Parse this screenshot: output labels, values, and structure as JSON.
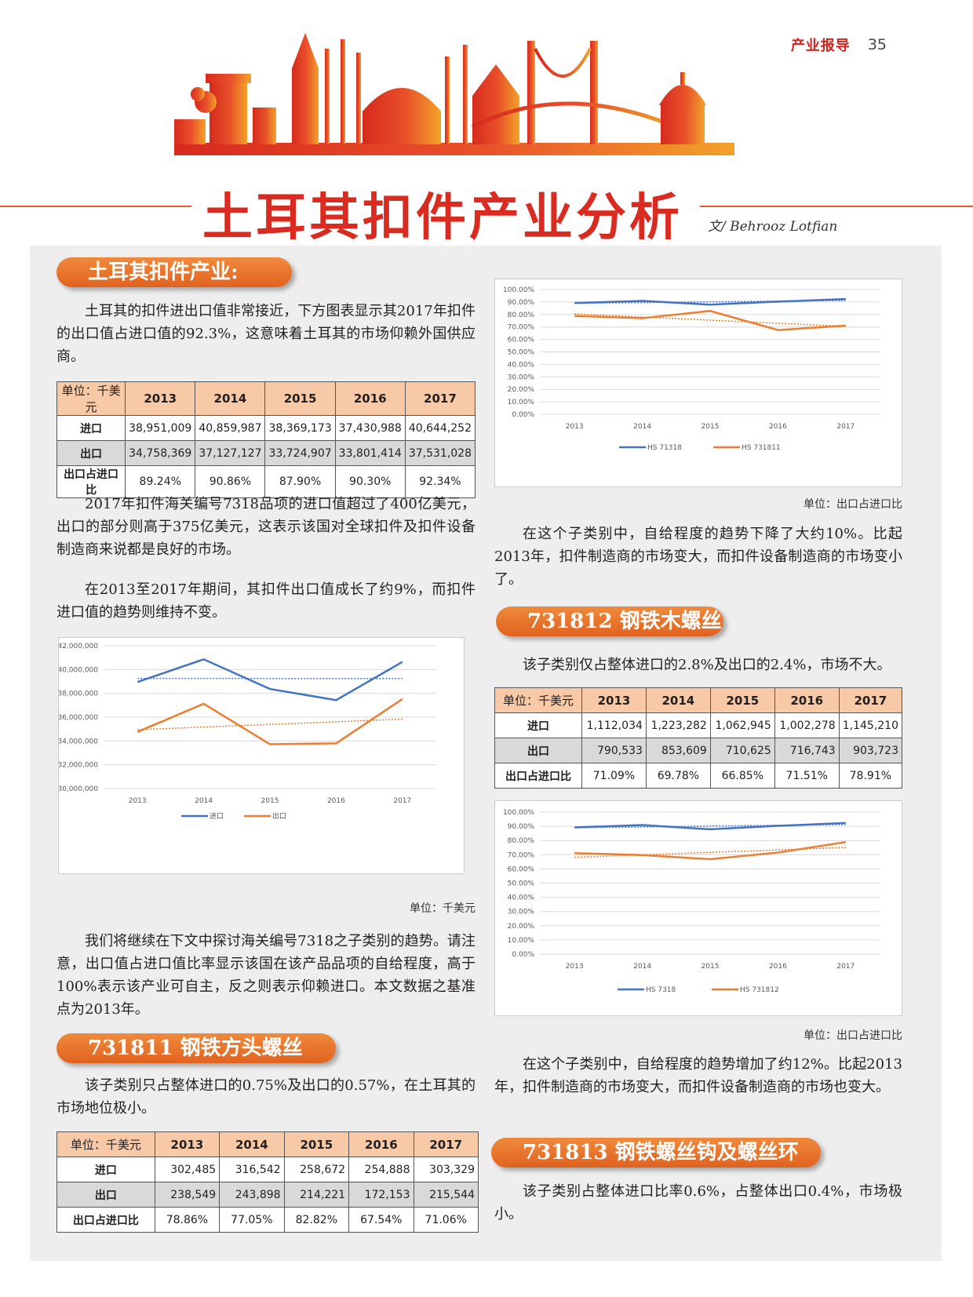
{
  "header": {
    "section_name": "产业报导",
    "page_number": "35",
    "title": "土耳其扣件产业分析",
    "byline": "文/ Behrooz Lotfian"
  },
  "colors": {
    "accent": "#e0621f",
    "title_red": "#d92b1f",
    "series_blue": "#4472c4",
    "series_orange": "#ed7d31"
  },
  "sec1": {
    "heading": "土耳其扣件产业:",
    "p1": "土耳其的扣件进出口值非常接近，下方图表显示其2017年扣件的出口值占进口值的92.3%，这意味着土耳其的市场仰赖外国供应商。",
    "p2": "2017年扣件海关编号7318品项的进口值超过了400亿美元，出口的部分则高于375亿美元，这表示该国对全球扣件及扣件设备制造商来说都是良好的市场。",
    "p3": "在2013至2017年期间，其扣件出口值成长了约9%，而扣件进口值的趋势则维持不变。",
    "p4": "我们将继续在下文中探讨海关编号7318之子类别的趋势。请注意，出口值占进口值比率显示该国在该产品品项的自给程度，高于100%表示该产业可自主，反之则表示仰赖进口。本文数据之基准点为2013年。",
    "unit": "单位：千美元"
  },
  "table1": {
    "header": [
      "单位：千美元",
      "2013",
      "2014",
      "2015",
      "2016",
      "2017"
    ],
    "rows": [
      [
        "进口",
        "38,951,009",
        "40,859,987",
        "38,369,173",
        "37,430,988",
        "40,644,252"
      ],
      [
        "出口",
        "34,758,369",
        "37,127,127",
        "33,724,907",
        "33,801,414",
        "37,531,028"
      ],
      [
        "出口占进口比",
        "89.24%",
        "90.86%",
        "87.90%",
        "90.30%",
        "92.34%"
      ]
    ]
  },
  "sec2": {
    "heading": "731811 钢铁方头螺丝",
    "p1": "该子类别只占整体进口的0.75%及出口的0.57%，在土耳其的市场地位极小。"
  },
  "table2": {
    "header": [
      "单位：千美元",
      "2013",
      "2014",
      "2015",
      "2016",
      "2017"
    ],
    "rows": [
      [
        "进口",
        "302,485",
        "316,542",
        "258,672",
        "254,888",
        "303,329"
      ],
      [
        "出口",
        "238,549",
        "243,898",
        "214,221",
        "172,153",
        "215,544"
      ],
      [
        "出口占进口比",
        "78.86%",
        "77.05%",
        "82.82%",
        "67.54%",
        "71.06%"
      ]
    ]
  },
  "right1": {
    "unit": "单位：出口占进口比",
    "p1": "在这个子类别中，自给程度的趋势下降了大约10%。比起2013年，扣件制造商的市场变大，而扣件设备制造商的市场变小了。"
  },
  "sec3": {
    "heading": "731812 钢铁木螺丝",
    "p1": "该子类别仅占整体进口的2.8%及出口的2.4%，市场不大。"
  },
  "table3": {
    "header": [
      "单位：千美元",
      "2013",
      "2014",
      "2015",
      "2016",
      "2017"
    ],
    "rows": [
      [
        "进口",
        "1,112,034",
        "1,223,282",
        "1,062,945",
        "1,002,278",
        "1,145,210"
      ],
      [
        "出口",
        "790,533",
        "853,609",
        "710,625",
        "716,743",
        "903,723"
      ],
      [
        "出口占进口比",
        "71.09%",
        "69.78%",
        "66.85%",
        "71.51%",
        "78.91%"
      ]
    ]
  },
  "right2": {
    "unit": "单位：出口占进口比",
    "p1": "在这个子类别中，自给程度的趋势增加了约12%。比起2013年，扣件制造商的市场变大，而扣件设备制造商的市场也变大。"
  },
  "sec4": {
    "heading": "731813 钢铁螺丝钩及螺丝环",
    "p1": "该子类别占整体进口比率0.6%，占整体出口0.4%，市场极小。"
  },
  "chart_data": [
    {
      "type": "line",
      "categories": [
        "2013",
        "2014",
        "2015",
        "2016",
        "2017"
      ],
      "series": [
        {
          "name": "进口",
          "values": [
            38951009,
            40859987,
            38369173,
            37430988,
            40644252
          ],
          "color": "#4472c4"
        },
        {
          "name": "出口",
          "values": [
            34758369,
            37127127,
            33724907,
            33801414,
            37531028
          ],
          "color": "#ed7d31"
        }
      ],
      "ylim": [
        30000000,
        42000000
      ],
      "yticks": [
        "30,000,000",
        "32,000,000",
        "34,000,000",
        "36,000,000",
        "38,000,000",
        "40,000,000",
        "42,000,000"
      ],
      "trendlines": true,
      "legend": "bottom",
      "grid": true
    },
    {
      "type": "line",
      "categories": [
        "2013",
        "2014",
        "2015",
        "2016",
        "2017"
      ],
      "series": [
        {
          "name": "HS 71318",
          "values": [
            89.24,
            90.86,
            87.9,
            90.3,
            92.34
          ],
          "color": "#4472c4"
        },
        {
          "name": "HS 731811",
          "values": [
            78.86,
            77.05,
            82.82,
            67.54,
            71.06
          ],
          "color": "#ed7d31"
        }
      ],
      "ylim": [
        0,
        100
      ],
      "yticks": [
        "0.00%",
        "10.00%",
        "20.00%",
        "30.00%",
        "40.00%",
        "50.00%",
        "60.00%",
        "70.00%",
        "80.00%",
        "90.00%",
        "100.00%"
      ],
      "trendlines": true,
      "legend": "bottom",
      "grid": true
    },
    {
      "type": "line",
      "categories": [
        "2013",
        "2014",
        "2015",
        "2016",
        "2017"
      ],
      "series": [
        {
          "name": "HS 7318",
          "values": [
            89.24,
            90.86,
            87.9,
            90.3,
            92.34
          ],
          "color": "#4472c4"
        },
        {
          "name": "HS 731812",
          "values": [
            71.09,
            69.78,
            66.85,
            71.51,
            78.91
          ],
          "color": "#ed7d31"
        }
      ],
      "ylim": [
        0,
        100
      ],
      "yticks": [
        "0.00%",
        "10.00%",
        "20.00%",
        "30.00%",
        "40.00%",
        "50.00%",
        "60.00%",
        "70.00%",
        "80.00%",
        "90.00%",
        "100.00%"
      ],
      "trendlines": true,
      "legend": "bottom",
      "grid": true
    }
  ]
}
